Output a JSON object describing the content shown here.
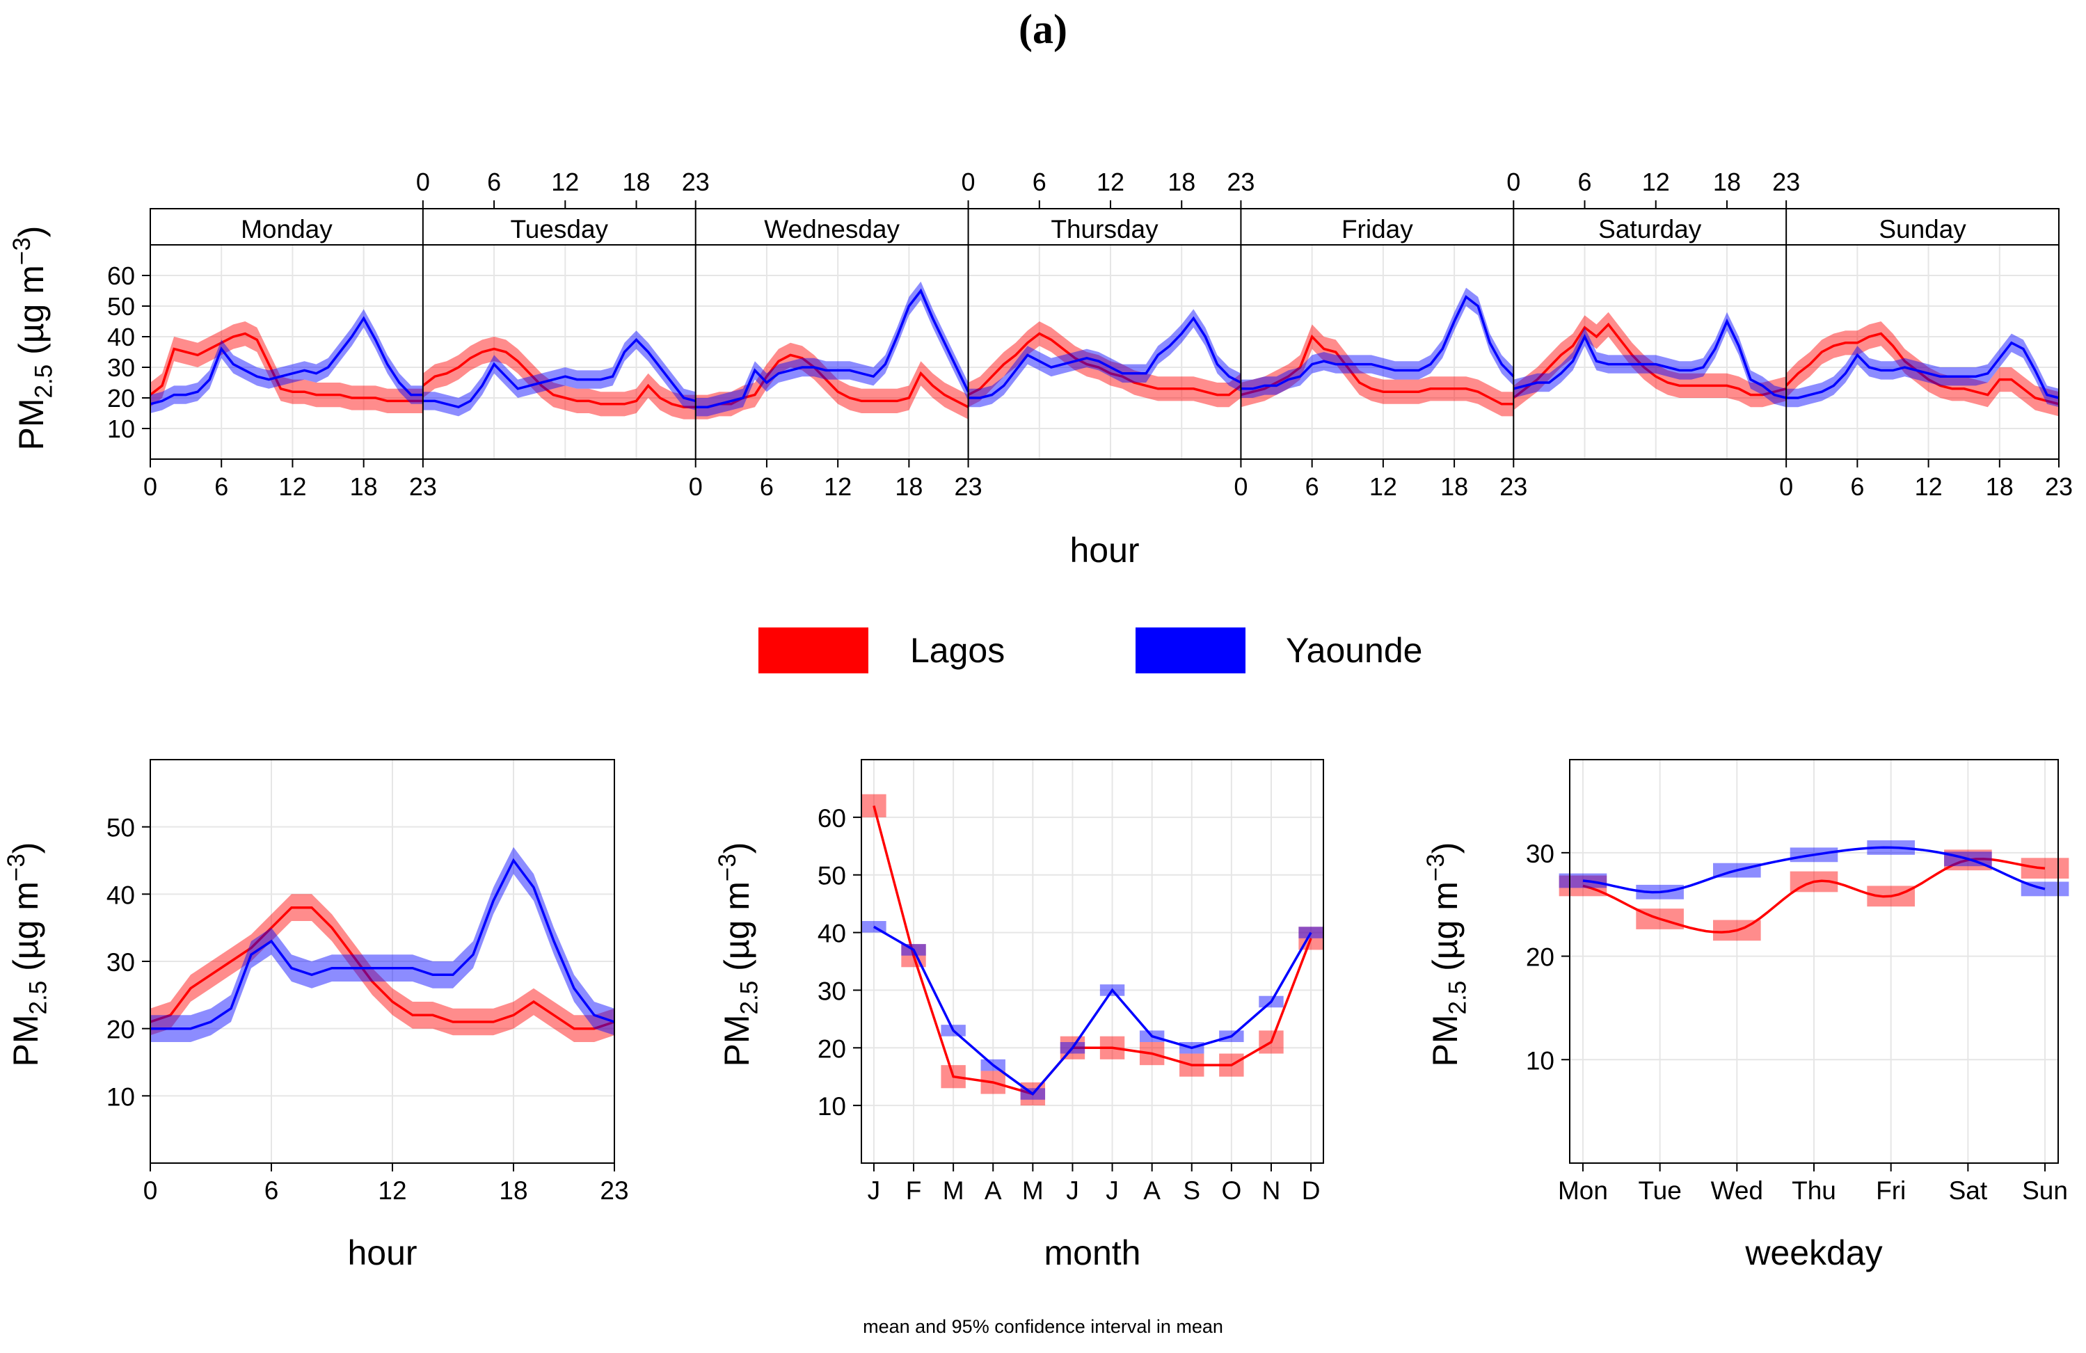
{
  "figure_label": "(a)",
  "footer_note": "mean and 95% confidence interval in mean",
  "colors": {
    "Lagos": "#ff0000",
    "Yaounde": "#0000ff"
  },
  "legend": [
    {
      "name": "Lagos",
      "color": "#ff0000"
    },
    {
      "name": "Yaounde",
      "color": "#0000ff"
    }
  ],
  "y_label": {
    "base": "PM",
    "sub": "2.5",
    "unit_open": " (µg m",
    "unit_sup": "−3",
    "unit_close": ")"
  },
  "chart_data": [
    {
      "id": "dayhour",
      "type": "line",
      "title": "",
      "xlabel": "hour",
      "ylabel": "PM2.5 (µg m−3)",
      "ylim": [
        0,
        70
      ],
      "yticks": [
        10,
        20,
        30,
        40,
        50,
        60
      ],
      "panel_hour_ticks": [
        0,
        6,
        12,
        18,
        23
      ],
      "panels": [
        "Monday",
        "Tuesday",
        "Wednesday",
        "Thursday",
        "Friday",
        "Saturday",
        "Sunday"
      ],
      "series": [
        {
          "name": "Lagos",
          "ci_halfwidth": 4,
          "values": [
            [
              21,
              24,
              36,
              35,
              34,
              36,
              38,
              40,
              41,
              39,
              31,
              23,
              22,
              22,
              21,
              21,
              21,
              20,
              20,
              20,
              19,
              19,
              19,
              19
            ],
            [
              24,
              27,
              28,
              30,
              33,
              35,
              36,
              35,
              32,
              28,
              24,
              21,
              20,
              19,
              19,
              18,
              18,
              18,
              19,
              24,
              20,
              18,
              17,
              17
            ],
            [
              17,
              17,
              18,
              18,
              20,
              21,
              27,
              32,
              34,
              33,
              30,
              26,
              22,
              20,
              19,
              19,
              19,
              19,
              20,
              28,
              24,
              21,
              19,
              17
            ],
            [
              21,
              23,
              27,
              31,
              34,
              38,
              41,
              39,
              36,
              33,
              31,
              30,
              28,
              27,
              25,
              24,
              23,
              23,
              23,
              23,
              22,
              21,
              21,
              24
            ],
            [
              21,
              22,
              23,
              25,
              27,
              30,
              40,
              36,
              35,
              30,
              25,
              23,
              22,
              22,
              22,
              22,
              23,
              23,
              23,
              23,
              22,
              20,
              18,
              18
            ],
            [
              20,
              23,
              26,
              30,
              34,
              37,
              43,
              40,
              44,
              39,
              34,
              30,
              27,
              25,
              24,
              24,
              24,
              24,
              24,
              23,
              21,
              21,
              22,
              23
            ],
            [
              24,
              28,
              31,
              35,
              37,
              38,
              38,
              40,
              41,
              37,
              32,
              29,
              26,
              24,
              23,
              23,
              22,
              21,
              26,
              26,
              23,
              20,
              19,
              18
            ]
          ]
        },
        {
          "name": "Yaounde",
          "ci_halfwidth": 3,
          "values": [
            [
              18,
              19,
              21,
              21,
              22,
              26,
              36,
              31,
              29,
              27,
              26,
              27,
              28,
              29,
              28,
              30,
              35,
              40,
              46,
              39,
              31,
              25,
              21,
              21
            ],
            [
              19,
              19,
              18,
              17,
              19,
              24,
              31,
              27,
              23,
              24,
              25,
              26,
              27,
              26,
              26,
              26,
              27,
              35,
              39,
              35,
              30,
              25,
              20,
              19
            ],
            [
              17,
              17,
              18,
              19,
              20,
              29,
              25,
              28,
              29,
              30,
              30,
              29,
              29,
              29,
              28,
              27,
              31,
              40,
              50,
              55,
              46,
              38,
              30,
              22
            ],
            [
              20,
              20,
              21,
              24,
              29,
              34,
              32,
              30,
              31,
              32,
              33,
              32,
              30,
              28,
              28,
              28,
              34,
              37,
              41,
              46,
              40,
              31,
              27,
              25
            ],
            [
              23,
              23,
              24,
              24,
              26,
              27,
              31,
              32,
              31,
              31,
              31,
              31,
              30,
              29,
              29,
              29,
              31,
              36,
              45,
              53,
              50,
              38,
              31,
              27
            ],
            [
              23,
              24,
              25,
              25,
              28,
              32,
              40,
              32,
              31,
              31,
              31,
              31,
              31,
              30,
              29,
              29,
              30,
              36,
              45,
              37,
              26,
              24,
              21,
              20
            ],
            [
              20,
              20,
              21,
              22,
              24,
              28,
              34,
              30,
              29,
              29,
              30,
              29,
              28,
              27,
              27,
              27,
              27,
              28,
              33,
              38,
              36,
              29,
              21,
              20
            ]
          ]
        }
      ]
    },
    {
      "id": "hour",
      "type": "line",
      "title": "",
      "xlabel": "hour",
      "ylabel": "PM2.5 (µg m−3)",
      "x": [
        0,
        1,
        2,
        3,
        4,
        5,
        6,
        7,
        8,
        9,
        10,
        11,
        12,
        13,
        14,
        15,
        16,
        17,
        18,
        19,
        20,
        21,
        22,
        23
      ],
      "xticks": [
        0,
        6,
        12,
        18,
        23
      ],
      "xlim": [
        0,
        23
      ],
      "ylim": [
        0,
        60
      ],
      "yticks": [
        10,
        20,
        30,
        40,
        50
      ],
      "series": [
        {
          "name": "Lagos",
          "ci_halfwidth": 2,
          "values": [
            21,
            22,
            26,
            28,
            30,
            32,
            35,
            38,
            38,
            35,
            31,
            27,
            24,
            22,
            22,
            21,
            21,
            21,
            22,
            24,
            22,
            20,
            20,
            21
          ]
        },
        {
          "name": "Yaounde",
          "ci_halfwidth": 2,
          "values": [
            20,
            20,
            20,
            21,
            23,
            31,
            33,
            29,
            28,
            29,
            29,
            29,
            29,
            29,
            28,
            28,
            31,
            39,
            45,
            41,
            33,
            26,
            22,
            21
          ]
        }
      ]
    },
    {
      "id": "month",
      "type": "line",
      "title": "",
      "xlabel": "month",
      "ylabel": "PM2.5 (µg m−3)",
      "categories": [
        "J",
        "F",
        "M",
        "A",
        "M",
        "J",
        "J",
        "A",
        "S",
        "O",
        "N",
        "D"
      ],
      "ylim": [
        0,
        70
      ],
      "yticks": [
        10,
        20,
        30,
        40,
        50,
        60
      ],
      "series": [
        {
          "name": "Lagos",
          "ci_halfwidth": 2,
          "values": [
            62,
            36,
            15,
            14,
            12,
            20,
            20,
            19,
            17,
            17,
            21,
            39
          ]
        },
        {
          "name": "Yaounde",
          "ci_halfwidth": 1,
          "values": [
            41,
            37,
            23,
            17,
            12,
            20,
            30,
            22,
            20,
            22,
            28,
            40
          ]
        }
      ]
    },
    {
      "id": "weekday",
      "type": "line",
      "title": "",
      "xlabel": "weekday",
      "ylabel": "PM2.5 (µg m−3)",
      "categories": [
        "Mon",
        "Tue",
        "Wed",
        "Thu",
        "Fri",
        "Sat",
        "Sun"
      ],
      "ylim": [
        0,
        39
      ],
      "yticks": [
        10,
        20,
        30
      ],
      "series": [
        {
          "name": "Lagos",
          "ci_halfwidth": 1,
          "values": [
            26.8,
            23.6,
            22.5,
            27.2,
            25.8,
            29.3,
            28.5
          ]
        },
        {
          "name": "Yaounde",
          "ci_halfwidth": 0.7,
          "values": [
            27.3,
            26.2,
            28.3,
            29.8,
            30.5,
            29.4,
            26.5
          ]
        }
      ]
    }
  ]
}
